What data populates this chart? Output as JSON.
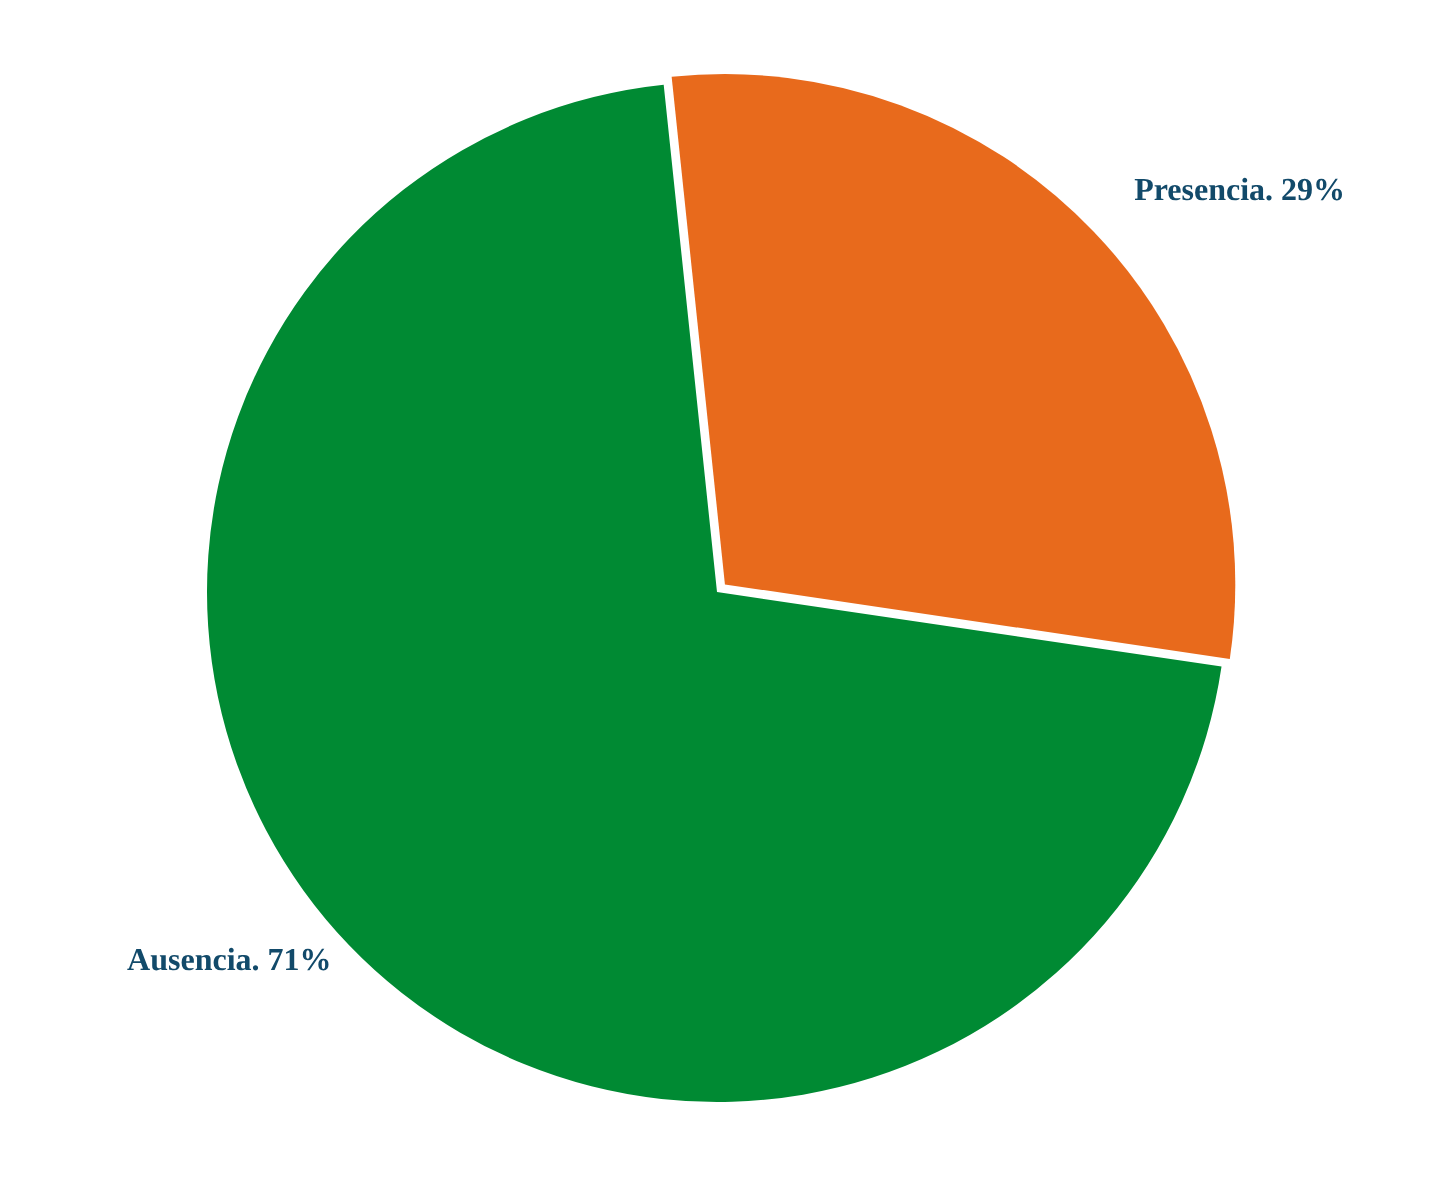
{
  "chart_data": {
    "type": "pie",
    "categories": [
      "Presencia.",
      "Ausencia."
    ],
    "values": [
      29,
      71
    ],
    "value_labels": [
      "29%",
      "71%"
    ],
    "colors": [
      "#e86a1c",
      "#008a33"
    ],
    "legend": false
  }
}
